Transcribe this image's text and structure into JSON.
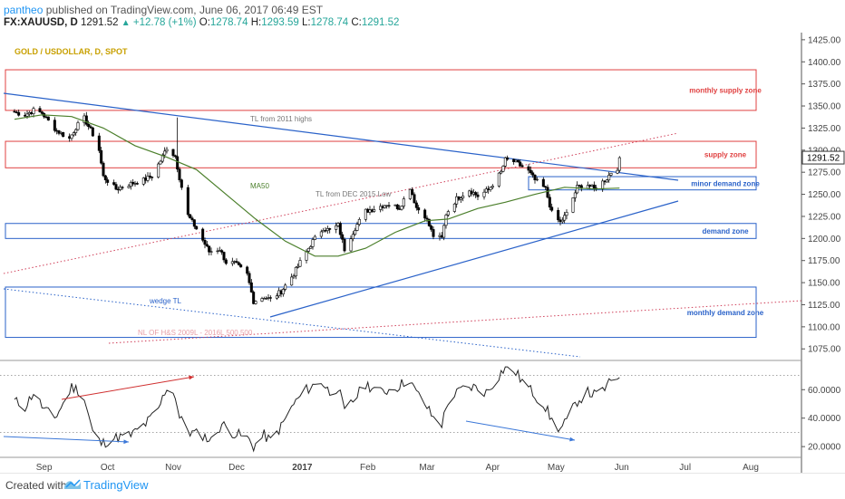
{
  "header": {
    "author": "pantheo",
    "published": "published on TradingView.com, June 06, 2017 06:49 EST",
    "symbol": "FX:XAUUSD, D",
    "last": "1291.52",
    "change_arrow": "▲",
    "change": "+12.78 (+1%)",
    "o_label": "O:",
    "o_value": "1278.74",
    "h_label": "H:",
    "h_value": "1293.59",
    "l_label": "L:",
    "l_value": "1278.74",
    "c_label": "C:",
    "c_value": "1291.52"
  },
  "footer": {
    "created_with": "Created with",
    "brand": "TradingView"
  },
  "chart_data": [
    {
      "type": "candlestick",
      "title": "GOLD / USDOLLAR, D, SPOT",
      "ylim": [
        1065,
        1430
      ],
      "y_ticks": [
        1075,
        1100,
        1125,
        1150,
        1175,
        1200,
        1225,
        1250,
        1275,
        1300,
        1325,
        1350,
        1375,
        1400,
        1425
      ],
      "y_tick_labels": [
        "1075.00",
        "1100.00",
        "1125.00",
        "1150.00",
        "1175.00",
        "1200.00",
        "1225.00",
        "1250.00",
        "1275.00",
        "1300.00",
        "1325.00",
        "1350.00",
        "1375.00",
        "1400.00",
        "1425.00"
      ],
      "last_price_label": "1291.52",
      "x_tick_labels": [
        "Sep",
        "Oct",
        "Nov",
        "Dec",
        "2017",
        "Feb",
        "Mar",
        "Apr",
        "May",
        "Jun",
        "Jul",
        "Aug"
      ],
      "colors": {
        "up": "#ffffff",
        "down": "#000000",
        "wick": "#000000",
        "ma": "#4b7f2b",
        "blue_line": "#2a62c9",
        "red_zone": "#e04040",
        "blue_zone": "#2a62c9",
        "red_dotted": "#d0405a"
      },
      "price_path": [
        [
          "2016-08-24",
          1343
        ],
        [
          "2016-08-29",
          1340
        ],
        [
          "2016-09-02",
          1345
        ],
        [
          "2016-09-06",
          1342
        ],
        [
          "2016-09-09",
          1333
        ],
        [
          "2016-09-13",
          1322
        ],
        [
          "2016-09-19",
          1313
        ],
        [
          "2016-09-22",
          1326
        ],
        [
          "2016-09-26",
          1336
        ],
        [
          "2016-09-30",
          1318
        ],
        [
          "2016-10-03",
          1300
        ],
        [
          "2016-10-05",
          1270
        ],
        [
          "2016-10-11",
          1256
        ],
        [
          "2016-10-18",
          1262
        ],
        [
          "2016-10-24",
          1266
        ],
        [
          "2016-10-28",
          1271
        ],
        [
          "2016-11-01",
          1288
        ],
        [
          "2016-11-04",
          1303
        ],
        [
          "2016-11-08",
          1293
        ],
        [
          "2016-11-10",
          1269
        ],
        [
          "2016-11-14",
          1226
        ],
        [
          "2016-11-18",
          1211
        ],
        [
          "2016-11-24",
          1185
        ],
        [
          "2016-11-29",
          1188
        ],
        [
          "2016-12-02",
          1173
        ],
        [
          "2016-12-06",
          1172
        ],
        [
          "2016-12-12",
          1159
        ],
        [
          "2016-12-15",
          1129
        ],
        [
          "2016-12-20",
          1134
        ],
        [
          "2016-12-23",
          1131
        ],
        [
          "2016-12-28",
          1140
        ],
        [
          "2017-01-03",
          1160
        ],
        [
          "2017-01-06",
          1173
        ],
        [
          "2017-01-12",
          1197
        ],
        [
          "2017-01-17",
          1212
        ],
        [
          "2017-01-20",
          1209
        ],
        [
          "2017-01-24",
          1215
        ],
        [
          "2017-01-27",
          1188
        ],
        [
          "2017-02-01",
          1212
        ],
        [
          "2017-02-06",
          1231
        ],
        [
          "2017-02-10",
          1234
        ],
        [
          "2017-02-16",
          1239
        ],
        [
          "2017-02-22",
          1235
        ],
        [
          "2017-02-27",
          1258
        ],
        [
          "2017-03-02",
          1235
        ],
        [
          "2017-03-06",
          1226
        ],
        [
          "2017-03-10",
          1203
        ],
        [
          "2017-03-14",
          1200
        ],
        [
          "2017-03-16",
          1228
        ],
        [
          "2017-03-21",
          1245
        ],
        [
          "2017-03-27",
          1255
        ],
        [
          "2017-03-31",
          1248
        ],
        [
          "2017-04-05",
          1255
        ],
        [
          "2017-04-11",
          1275
        ],
        [
          "2017-04-13",
          1289
        ],
        [
          "2017-04-17",
          1287
        ],
        [
          "2017-04-20",
          1283
        ],
        [
          "2017-04-24",
          1276
        ],
        [
          "2017-04-27",
          1266
        ],
        [
          "2017-05-02",
          1256
        ],
        [
          "2017-05-05",
          1229
        ],
        [
          "2017-05-09",
          1218
        ],
        [
          "2017-05-12",
          1228
        ],
        [
          "2017-05-17",
          1258
        ],
        [
          "2017-05-22",
          1261
        ],
        [
          "2017-05-25",
          1256
        ],
        [
          "2017-05-31",
          1268
        ],
        [
          "2017-06-02",
          1275
        ],
        [
          "2017-06-05",
          1280
        ],
        [
          "2017-06-06",
          1291.52
        ]
      ],
      "ma50_path": [
        [
          "2016-08-24",
          1335
        ],
        [
          "2016-09-06",
          1340
        ],
        [
          "2016-09-20",
          1338
        ],
        [
          "2016-10-05",
          1325
        ],
        [
          "2016-10-20",
          1305
        ],
        [
          "2016-11-04",
          1292
        ],
        [
          "2016-11-18",
          1278
        ],
        [
          "2016-12-02",
          1250
        ],
        [
          "2016-12-16",
          1222
        ],
        [
          "2016-12-30",
          1197
        ],
        [
          "2017-01-13",
          1180
        ],
        [
          "2017-01-24",
          1180
        ],
        [
          "2017-02-06",
          1189
        ],
        [
          "2017-02-20",
          1207
        ],
        [
          "2017-03-06",
          1220
        ],
        [
          "2017-03-17",
          1222
        ],
        [
          "2017-03-31",
          1234
        ],
        [
          "2017-04-13",
          1241
        ],
        [
          "2017-04-27",
          1250
        ],
        [
          "2017-05-11",
          1258
        ],
        [
          "2017-05-25",
          1256
        ],
        [
          "2017-06-06",
          1257
        ]
      ],
      "annotations": [
        {
          "label": "TL from 2011 highs"
        },
        {
          "label": "TL from DEC 2015 Low"
        },
        {
          "label": "MA50"
        },
        {
          "label": "wedge TL"
        },
        {
          "label": "NL OF H&S 2009L - 2016L 500.500"
        },
        {
          "label": "monthly supply zone",
          "from": 1345,
          "to": 1391
        },
        {
          "label": "supply zone",
          "from": 1280,
          "to": 1310
        },
        {
          "label": "minor demand zone",
          "from": 1255,
          "to": 1270
        },
        {
          "label": "demand zone",
          "from": 1200,
          "to": 1217
        },
        {
          "label": "monthly demand zone",
          "from": 1088,
          "to": 1145
        }
      ]
    },
    {
      "type": "line",
      "ylim": [
        15,
        78
      ],
      "y_ticks": [
        20,
        40,
        60
      ],
      "y_tick_labels": [
        "20.0000",
        "40.0000",
        "60.0000"
      ],
      "levels": [
        70,
        30
      ],
      "series": [
        {
          "values": [
            [
              "2016-08-24",
              52
            ],
            [
              "2016-08-29",
              48
            ],
            [
              "2016-09-02",
              58
            ],
            [
              "2016-09-07",
              46
            ],
            [
              "2016-09-12",
              40
            ],
            [
              "2016-09-16",
              50
            ],
            [
              "2016-09-20",
              62
            ],
            [
              "2016-09-23",
              60
            ],
            [
              "2016-09-26",
              54
            ],
            [
              "2016-09-30",
              30
            ],
            [
              "2016-10-04",
              22
            ],
            [
              "2016-10-10",
              26
            ],
            [
              "2016-10-18",
              28
            ],
            [
              "2016-10-25",
              36
            ],
            [
              "2016-10-31",
              46
            ],
            [
              "2016-11-04",
              62
            ],
            [
              "2016-11-08",
              56
            ],
            [
              "2016-11-10",
              40
            ],
            [
              "2016-11-15",
              30
            ],
            [
              "2016-11-21",
              28
            ],
            [
              "2016-11-25",
              24
            ],
            [
              "2016-11-30",
              36
            ],
            [
              "2016-12-05",
              30
            ],
            [
              "2016-12-12",
              26
            ],
            [
              "2016-12-15",
              20
            ],
            [
              "2016-12-20",
              28
            ],
            [
              "2016-12-23",
              24
            ],
            [
              "2016-12-28",
              34
            ],
            [
              "2017-01-03",
              50
            ],
            [
              "2017-01-09",
              60
            ],
            [
              "2017-01-16",
              66
            ],
            [
              "2017-01-20",
              58
            ],
            [
              "2017-01-24",
              62
            ],
            [
              "2017-01-27",
              44
            ],
            [
              "2017-02-01",
              54
            ],
            [
              "2017-02-06",
              64
            ],
            [
              "2017-02-13",
              58
            ],
            [
              "2017-02-21",
              62
            ],
            [
              "2017-02-27",
              68
            ],
            [
              "2017-03-01",
              60
            ],
            [
              "2017-03-06",
              50
            ],
            [
              "2017-03-10",
              40
            ],
            [
              "2017-03-14",
              36
            ],
            [
              "2017-03-17",
              52
            ],
            [
              "2017-03-23",
              60
            ],
            [
              "2017-03-29",
              62
            ],
            [
              "2017-04-04",
              58
            ],
            [
              "2017-04-10",
              70
            ],
            [
              "2017-04-13",
              76
            ],
            [
              "2017-04-18",
              72
            ],
            [
              "2017-04-21",
              66
            ],
            [
              "2017-04-26",
              58
            ],
            [
              "2017-05-02",
              48
            ],
            [
              "2017-05-05",
              38
            ],
            [
              "2017-05-09",
              32
            ],
            [
              "2017-05-12",
              38
            ],
            [
              "2017-05-17",
              52
            ],
            [
              "2017-05-22",
              58
            ],
            [
              "2017-05-26",
              56
            ],
            [
              "2017-05-31",
              62
            ],
            [
              "2017-06-02",
              66
            ],
            [
              "2017-06-06",
              70
            ]
          ]
        }
      ]
    }
  ]
}
